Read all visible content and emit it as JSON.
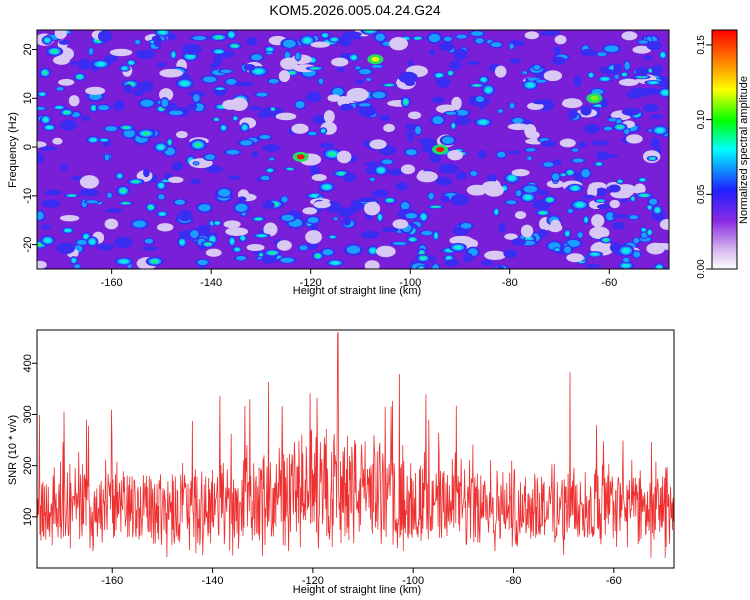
{
  "figure": {
    "title": "KOM5.2026.005.04.24.G24"
  },
  "chart_data": [
    {
      "type": "heatmap",
      "name": "spectrogram",
      "xlabel": "Height of straight line (km)",
      "ylabel": "Frequency (Hz)",
      "xlim": [
        -175,
        -48
      ],
      "ylim": [
        -25,
        24
      ],
      "xticks": [
        -160,
        -140,
        -120,
        -100,
        -80,
        -60
      ],
      "yticks": [
        -20,
        -10,
        0,
        10,
        20
      ],
      "colorbar": {
        "label": "Normalized spectral amplitude",
        "range": [
          0,
          0.16
        ],
        "ticks": [
          "0.00",
          "0.05",
          "0.10",
          "0.15"
        ]
      },
      "highlights": [
        {
          "x": -122,
          "y": -2,
          "value": 0.155
        },
        {
          "x": -94,
          "y": -0.5,
          "value": 0.15
        },
        {
          "x": -107,
          "y": 18,
          "value": 0.1
        },
        {
          "x": -63,
          "y": 10,
          "value": 0.09
        }
      ]
    },
    {
      "type": "line",
      "name": "snr",
      "xlabel": "Height of straight line (km)",
      "ylabel": "SNR (10 * v/v)",
      "xlim": [
        -175,
        -48
      ],
      "ylim": [
        0,
        465
      ],
      "xticks": [
        -160,
        -140,
        -120,
        -100,
        -80,
        -60
      ],
      "yticks": [
        100,
        200,
        300,
        400
      ],
      "color": "#ee3030",
      "baseline": 120,
      "peak": {
        "x": -115,
        "value": 460
      }
    }
  ]
}
